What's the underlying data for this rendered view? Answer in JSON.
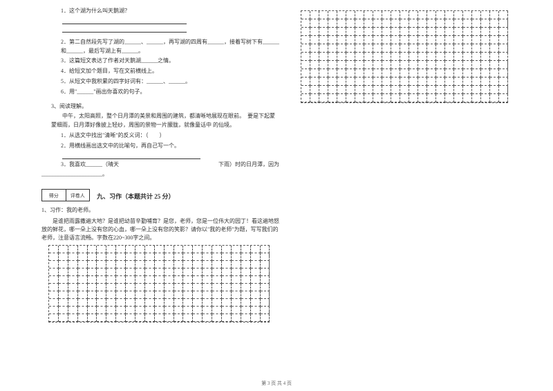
{
  "leftColumn": {
    "questions1": [
      "1．这个湖为什么叫天鹅湖？",
      "2．第二自然段先写了湖的______、______，再写湖的四周有______，接着写树下有______和______，最后写湖上有______。",
      "3．这篇短文表达了作者对天鹅湖______之情。",
      "4．给短文加个题目，写在文前横线上。",
      "5．从短文中我积累的四字好词有：______、______。",
      "6．用\"______\"画出你喜欢的句子。"
    ],
    "reading3Title": "3、阅读理解。",
    "reading3Body": "　　中午，太阳高照，整个日月潭的美景和周围的建筑，都清晰地展现在眼前。　要是下起蒙蒙细雨，日月潭好像披上轻纱，周围的景物一片朦胧，就像童话中 的仙境。",
    "reading3Questions": [
      "1．从选文中找出\"清晰\"的反义词：（　　）",
      "2．用横线画出选文中的比喻句，再自己写一个。",
      "3．我喜欢______（晴天　　　　　　　　　　　　　　　　　　下雨）时的日月潭，因为"
    ],
    "blankTail": "______________________。",
    "scoreBox": {
      "left": "得分",
      "right": "评卷人"
    },
    "sectionTitle": "九、习作（本题共计 25 分）",
    "essayTitle": "1、习作：我的老师。",
    "essayBody": "　　是谁把雨露撒遍大地？是谁把幼苗辛勤哺育？是您，老师，您是一位伟大的园丁！看这遍地怒放的鲜花，哪一朵上没有您的心血，哪一朵上没有您的笑影？请你以\"我的老师\"为题，写写我们的老师，注意语言流畅。字数在220~300字之间。"
  },
  "gridLeft": {
    "rows": 10,
    "cols": 23,
    "cellW": 13.9,
    "cellH": 11
  },
  "gridRight": {
    "rows": 11,
    "cols": 23,
    "cellW": 13.0,
    "cellH": 12
  },
  "footer": "第 3 页 共 4 页"
}
